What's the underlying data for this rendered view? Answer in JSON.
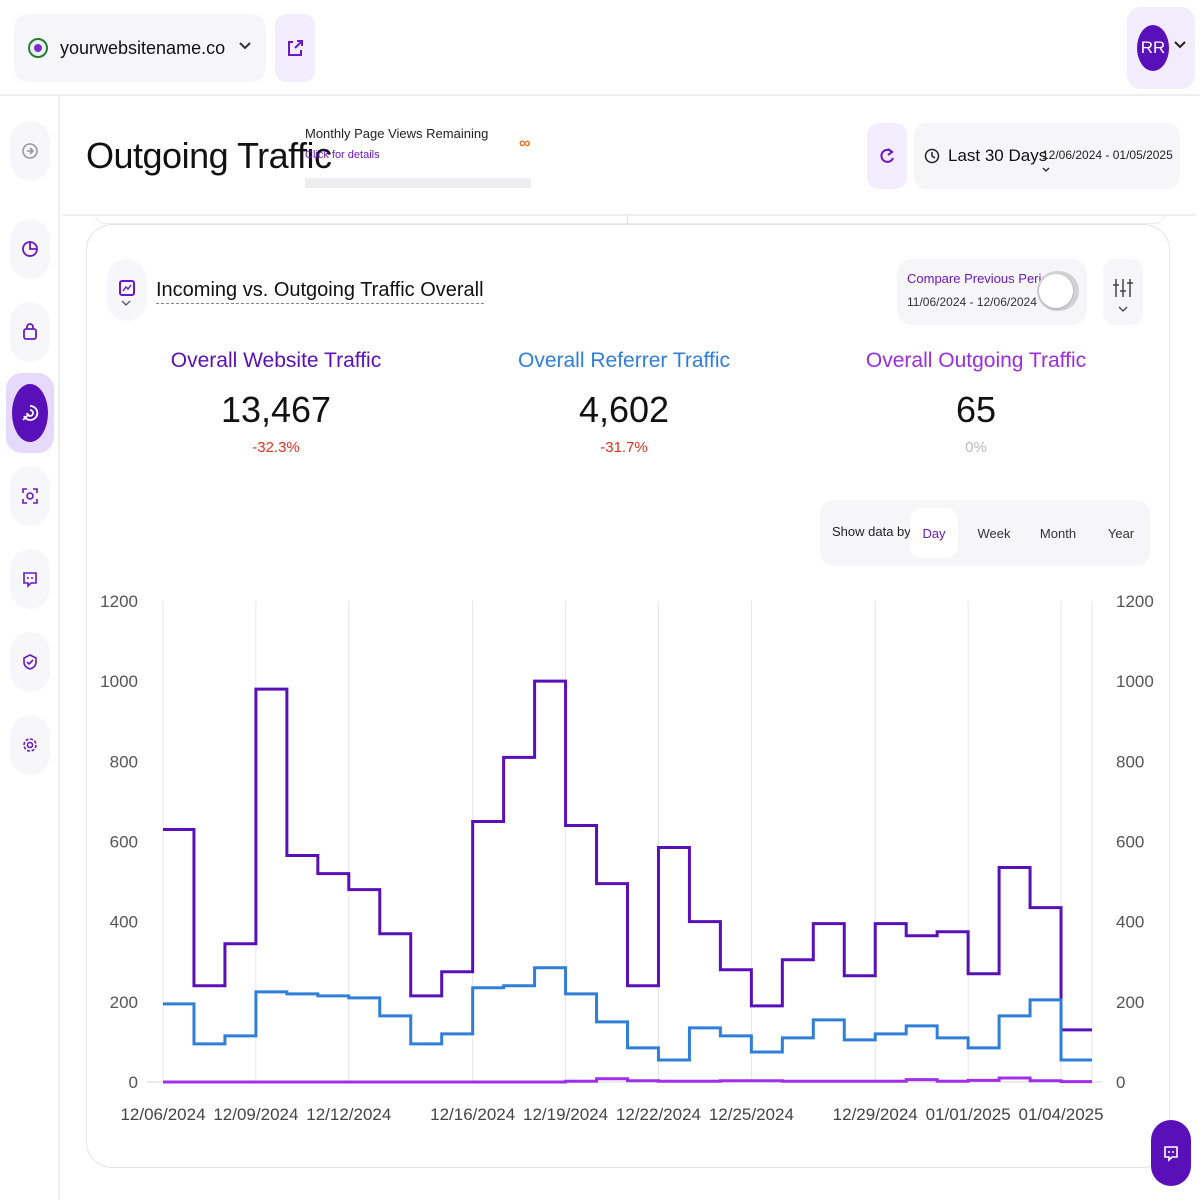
{
  "topbar": {
    "site_name": "yourwebsitename.co",
    "avatar_initials": "RR"
  },
  "sidebar": {
    "items": [
      {
        "icon": "expand-icon"
      },
      {
        "icon": "pie-chart-icon"
      },
      {
        "icon": "shopping-bag-icon"
      },
      {
        "icon": "outgoing-traffic-icon",
        "active": true
      },
      {
        "icon": "focus-target-icon"
      },
      {
        "icon": "chat-bubble-icon"
      },
      {
        "icon": "shield-check-icon"
      },
      {
        "icon": "gear-icon"
      }
    ]
  },
  "header": {
    "title": "Outgoing Traffic",
    "page_views_label": "Monthly Page Views Remaining",
    "page_views_link": "Click for details",
    "page_views_value": "∞",
    "date_preset": "Last 30 Days",
    "date_range": "12/06/2024 - 01/05/2025"
  },
  "card": {
    "title": "Incoming vs. Outgoing Traffic Overall",
    "compare_label": "Compare Previous Period",
    "compare_range": "11/06/2024 - 12/06/2024",
    "compare_enabled": false,
    "stats": [
      {
        "label": "Overall Website Traffic",
        "value": "13,467",
        "delta": "-32.3%",
        "color": "#5a10b8",
        "delta_color": "#e0301e"
      },
      {
        "label": "Overall Referrer Traffic",
        "value": "4,602",
        "delta": "-31.7%",
        "color": "#2f7fd8",
        "delta_color": "#e0301e"
      },
      {
        "label": "Overall Outgoing Traffic",
        "value": "65",
        "delta": "0%",
        "color": "#9b2de0",
        "delta_color": "#bbbbbb"
      }
    ],
    "show_data_label": "Show data by:",
    "granularity": [
      {
        "label": "Day",
        "active": true
      },
      {
        "label": "Week",
        "active": false
      },
      {
        "label": "Month",
        "active": false
      },
      {
        "label": "Year",
        "active": false
      }
    ]
  },
  "chart_data": {
    "type": "line",
    "step": true,
    "x": [
      "12/06/2024",
      "12/07/2024",
      "12/08/2024",
      "12/09/2024",
      "12/10/2024",
      "12/11/2024",
      "12/12/2024",
      "12/13/2024",
      "12/14/2024",
      "12/15/2024",
      "12/16/2024",
      "12/17/2024",
      "12/18/2024",
      "12/19/2024",
      "12/20/2024",
      "12/21/2024",
      "12/22/2024",
      "12/23/2024",
      "12/24/2024",
      "12/25/2024",
      "12/26/2024",
      "12/27/2024",
      "12/28/2024",
      "12/29/2024",
      "12/30/2024",
      "12/31/2024",
      "01/01/2025",
      "01/02/2025",
      "01/03/2025",
      "01/04/2025"
    ],
    "x_tick_labels": [
      "12/06/2024",
      "12/09/2024",
      "12/12/2024",
      "12/16/2024",
      "12/19/2024",
      "12/22/2024",
      "12/25/2024",
      "12/29/2024",
      "01/01/2025",
      "01/04/2025"
    ],
    "y_ticks": [
      0,
      200,
      400,
      600,
      800,
      1000,
      1200
    ],
    "ylim": [
      0,
      1200
    ],
    "grid": true,
    "series": [
      {
        "color": "#5a10b8",
        "values": [
          630,
          240,
          345,
          980,
          565,
          520,
          480,
          370,
          215,
          275,
          650,
          810,
          1000,
          640,
          495,
          240,
          585,
          400,
          280,
          190,
          305,
          395,
          265,
          395,
          365,
          375,
          270,
          535,
          435,
          130
        ]
      },
      {
        "color": "#2f7fd8",
        "values": [
          195,
          95,
          115,
          225,
          220,
          215,
          210,
          165,
          95,
          120,
          235,
          240,
          285,
          220,
          150,
          85,
          55,
          135,
          115,
          75,
          110,
          155,
          105,
          120,
          140,
          110,
          85,
          165,
          205,
          55
        ]
      },
      {
        "color": "#a12fe8",
        "values": [
          0,
          0,
          0,
          0,
          0,
          0,
          0,
          0,
          0,
          0,
          0,
          0,
          0,
          2,
          8,
          3,
          2,
          2,
          3,
          3,
          2,
          2,
          2,
          2,
          6,
          2,
          4,
          10,
          3,
          1
        ]
      }
    ]
  }
}
